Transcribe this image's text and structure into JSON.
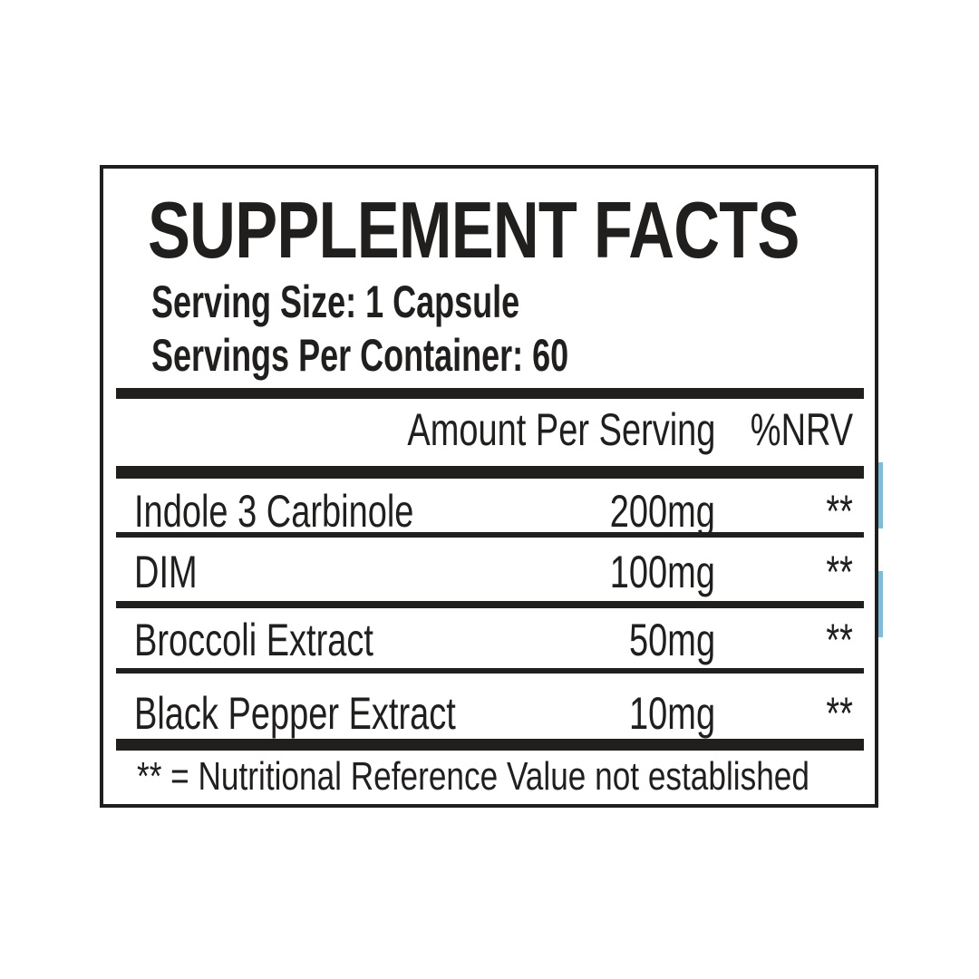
{
  "label": {
    "title": "SUPPLEMENT FACTS",
    "serving_size": "Serving Size: 1 Capsule",
    "servings_per_container": "Servings Per Container: 60",
    "columns": {
      "amount": "Amount Per Serving",
      "nrv": "%NRV"
    },
    "rows": [
      {
        "name": "Indole 3 Carbinole",
        "amount": "200mg",
        "nrv": "**"
      },
      {
        "name": "DIM",
        "amount": "100mg",
        "nrv": "**"
      },
      {
        "name": "Broccoli Extract",
        "amount": "50mg",
        "nrv": "**"
      },
      {
        "name": "Black Pepper Extract",
        "amount": "10mg",
        "nrv": "**"
      }
    ],
    "footnote": "** = Nutritional Reference Value not established",
    "colors": {
      "ink": "#211e1e",
      "background": "#ffffff",
      "edge_artifact_blue": "#7fbcd7"
    }
  }
}
